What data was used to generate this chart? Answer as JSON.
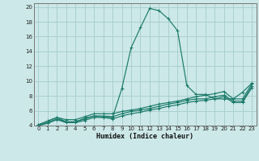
{
  "xlabel": "Humidex (Indice chaleur)",
  "bg_color": "#cce8e8",
  "line_color": "#1a7a6a",
  "grid_color": "#aacfcf",
  "xlim": [
    -0.5,
    23.5
  ],
  "ylim": [
    4,
    20.5
  ],
  "yticks": [
    4,
    6,
    8,
    10,
    12,
    14,
    16,
    18,
    20
  ],
  "xticks": [
    0,
    1,
    2,
    3,
    4,
    5,
    6,
    7,
    8,
    9,
    10,
    11,
    12,
    13,
    14,
    15,
    16,
    17,
    18,
    19,
    20,
    21,
    22,
    23
  ],
  "lines": [
    {
      "x": [
        0,
        1,
        2,
        3,
        4,
        5,
        6,
        7,
        8,
        9,
        10,
        11,
        12,
        13,
        14,
        15,
        16,
        17,
        18,
        19,
        20,
        21,
        22,
        23
      ],
      "y": [
        4.1,
        4.6,
        5.1,
        4.5,
        4.5,
        5.0,
        5.3,
        5.1,
        5.1,
        9.0,
        14.5,
        17.2,
        19.8,
        19.5,
        18.4,
        16.8,
        9.4,
        8.2,
        8.2,
        7.6,
        7.6,
        7.6,
        8.5,
        9.7
      ]
    },
    {
      "x": [
        0,
        1,
        2,
        3,
        4,
        5,
        6,
        7,
        8,
        9,
        10,
        11,
        12,
        13,
        14,
        15,
        16,
        17,
        18,
        19,
        20,
        21,
        22,
        23
      ],
      "y": [
        4.1,
        4.6,
        5.1,
        4.8,
        4.8,
        5.2,
        5.6,
        5.6,
        5.6,
        5.9,
        6.1,
        6.3,
        6.6,
        6.9,
        7.1,
        7.3,
        7.6,
        7.9,
        8.1,
        8.3,
        8.6,
        7.6,
        7.6,
        9.6
      ]
    },
    {
      "x": [
        0,
        1,
        2,
        3,
        4,
        5,
        6,
        7,
        8,
        9,
        10,
        11,
        12,
        13,
        14,
        15,
        16,
        17,
        18,
        19,
        20,
        21,
        22,
        23
      ],
      "y": [
        4.0,
        4.4,
        4.9,
        4.5,
        4.5,
        4.9,
        5.3,
        5.3,
        5.2,
        5.6,
        5.9,
        6.1,
        6.3,
        6.6,
        6.9,
        7.1,
        7.4,
        7.6,
        7.6,
        7.9,
        8.1,
        7.3,
        7.3,
        9.3
      ]
    },
    {
      "x": [
        0,
        1,
        2,
        3,
        4,
        5,
        6,
        7,
        8,
        9,
        10,
        11,
        12,
        13,
        14,
        15,
        16,
        17,
        18,
        19,
        20,
        21,
        22,
        23
      ],
      "y": [
        4.0,
        4.3,
        4.8,
        4.4,
        4.4,
        4.7,
        5.1,
        5.1,
        4.9,
        5.3,
        5.6,
        5.8,
        6.1,
        6.3,
        6.6,
        6.8,
        7.1,
        7.3,
        7.4,
        7.6,
        7.9,
        7.1,
        7.1,
        9.1
      ]
    }
  ]
}
